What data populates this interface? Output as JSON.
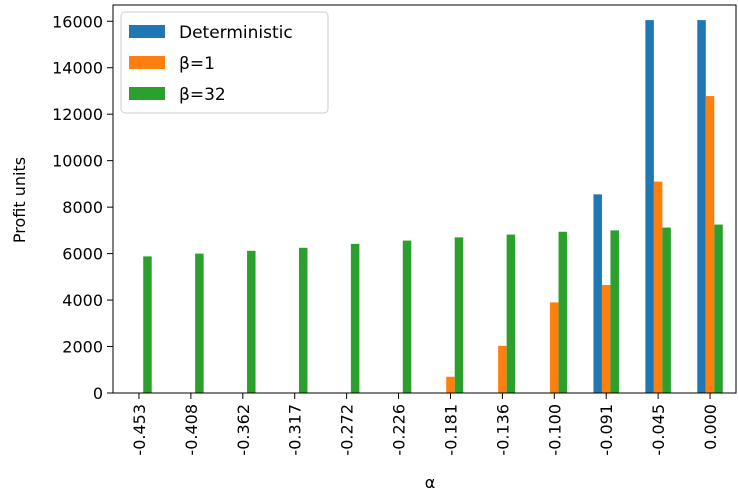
{
  "chart_data": {
    "type": "bar",
    "title": "",
    "xlabel": "α",
    "ylabel": "Profit units",
    "categories": [
      "-0.453",
      "-0.408",
      "-0.362",
      "-0.317",
      "-0.272",
      "-0.226",
      "-0.181",
      "-0.136",
      "-0.100",
      "-0.091",
      "-0.045",
      "0.000"
    ],
    "series": [
      {
        "name": "Deterministic",
        "color": "#1f77b4",
        "values": [
          0,
          0,
          0,
          0,
          0,
          0,
          0,
          0,
          0,
          8550,
          16050,
          16050
        ]
      },
      {
        "name": "β=1",
        "color": "#ff7f0e",
        "values": [
          0,
          0,
          0,
          0,
          0,
          0,
          700,
          2030,
          3900,
          4650,
          9100,
          12780
        ]
      },
      {
        "name": "β=32",
        "color": "#2ca02c",
        "values": [
          5880,
          6000,
          6120,
          6250,
          6420,
          6560,
          6700,
          6820,
          6940,
          7000,
          7120,
          7250
        ]
      }
    ],
    "ylim": [
      0,
      16700
    ],
    "yticks": [
      0,
      2000,
      4000,
      6000,
      8000,
      10000,
      12000,
      14000,
      16000
    ],
    "grid": false,
    "legend_position": "top-left"
  }
}
